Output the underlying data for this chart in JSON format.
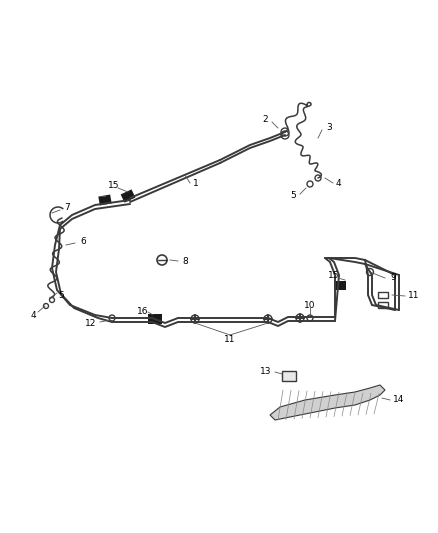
{
  "bg_color": "#ffffff",
  "line_color": "#3a3a3a",
  "label_color": "#000000",
  "figsize": [
    4.38,
    5.33
  ],
  "dpi": 100,
  "lw_tube": 1.4,
  "lw_hose": 1.1,
  "lw_leader": 0.6
}
